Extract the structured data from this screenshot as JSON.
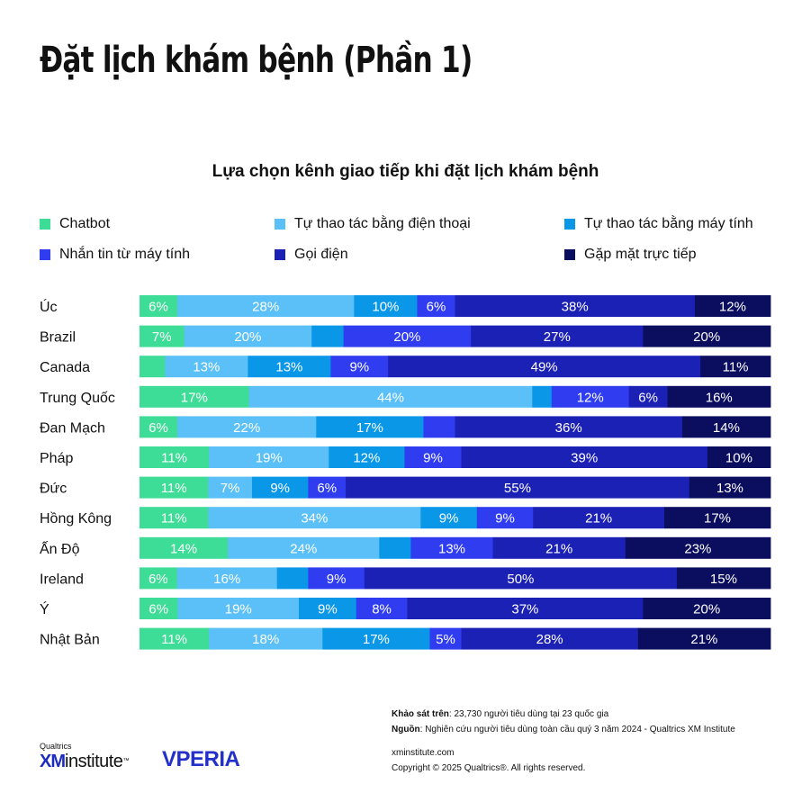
{
  "page": {
    "title": "Đặt lịch khám bệnh (Phần 1)"
  },
  "chart_data": {
    "type": "bar",
    "orientation": "horizontal",
    "stacked": true,
    "title": "Lựa chọn kênh giao tiếp khi đặt lịch khám bệnh",
    "legend_position": "top",
    "categories": [
      "Úc",
      "Brazil",
      "Canada",
      "Trung Quốc",
      "Đan Mạch",
      "Pháp",
      "Đức",
      "Hồng Kông",
      "Ấn Độ",
      "Ireland",
      "Ý",
      "Nhật Bản"
    ],
    "series": [
      {
        "name": "Chatbot",
        "color": "#3ddc97",
        "values": [
          6,
          7,
          4,
          17,
          6,
          11,
          11,
          11,
          14,
          6,
          6,
          11
        ],
        "labels": [
          "6%",
          "7%",
          "",
          "17%",
          "6%",
          "11%",
          "11%",
          "11%",
          "14%",
          "6%",
          "6%",
          "11%"
        ]
      },
      {
        "name": "Tự thao tác bằng điện thoại",
        "color": "#5bc0f8",
        "values": [
          28,
          20,
          13,
          44,
          22,
          19,
          7,
          34,
          24,
          16,
          19,
          18
        ],
        "labels": [
          "28%",
          "20%",
          "13%",
          "44%",
          "22%",
          "19%",
          "7%",
          "34%",
          "24%",
          "16%",
          "19%",
          "18%"
        ]
      },
      {
        "name": "Tự thao tác bằng máy tính",
        "color": "#0a97e8",
        "values": [
          10,
          5,
          13,
          3,
          17,
          12,
          9,
          9,
          5,
          5,
          9,
          17
        ],
        "labels": [
          "10%",
          "",
          "13%",
          "",
          "17%",
          "12%",
          "9%",
          "9%",
          "",
          "",
          "9%",
          "17%"
        ]
      },
      {
        "name": "Nhắn tin từ máy tính",
        "color": "#2f3cf0",
        "values": [
          6,
          20,
          9,
          12,
          5,
          9,
          6,
          9,
          13,
          9,
          8,
          5
        ],
        "labels": [
          "6%",
          "20%",
          "9%",
          "12%",
          "",
          "9%",
          "6%",
          "9%",
          "13%",
          "9%",
          "8%",
          "5%"
        ]
      },
      {
        "name": "Gọi điện",
        "color": "#1c21b5",
        "values": [
          38,
          27,
          49,
          6,
          36,
          39,
          55,
          21,
          21,
          50,
          37,
          28
        ],
        "labels": [
          "38%",
          "27%",
          "49%",
          "6%",
          "36%",
          "39%",
          "55%",
          "21%",
          "21%",
          "50%",
          "37%",
          "28%"
        ]
      },
      {
        "name": "Gặp mặt trực tiếp",
        "color": "#0b0e5e",
        "values": [
          12,
          20,
          11,
          16,
          14,
          10,
          13,
          17,
          23,
          15,
          20,
          21
        ],
        "labels": [
          "12%",
          "20%",
          "11%",
          "16%",
          "14%",
          "10%",
          "13%",
          "17%",
          "23%",
          "15%",
          "20%",
          "21%"
        ]
      }
    ]
  },
  "notes": {
    "survey_label": "Khảo sát trên",
    "survey_text": ": 23,730 người tiêu dùng tại 23 quốc gia",
    "source_label": "Nguồn",
    "source_text": ": Nghiên cứu người tiêu dùng toàn cầu quý 3 năm 2024 - Qualtrics XM Institute"
  },
  "footer": {
    "website": "xminstitute.com",
    "copyright": "Copyright © 2025 Qualtrics®. All rights reserved."
  },
  "logos": {
    "qualtrics": "Qualtrics",
    "xm": "XM",
    "institute": "institute",
    "trademark": "™",
    "vperia": "VPERIA"
  }
}
